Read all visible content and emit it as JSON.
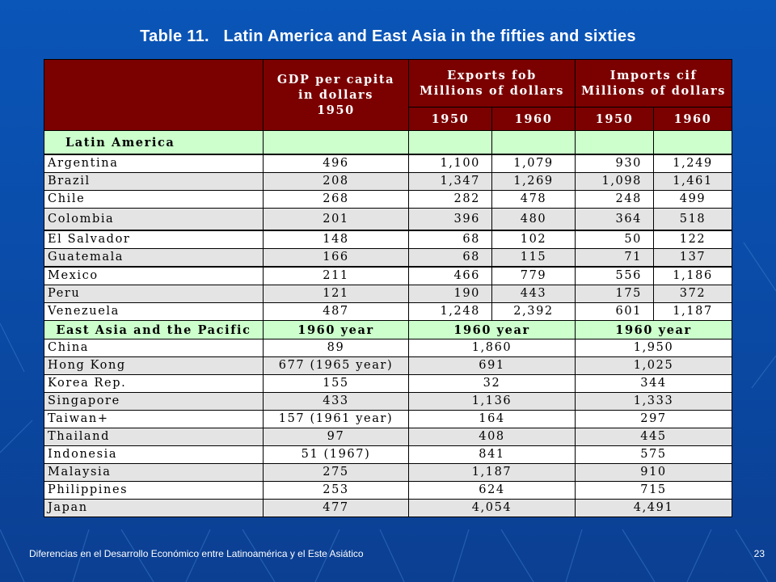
{
  "title": {
    "prefix": "Table 11.",
    "text": "Latin America and East Asia in the fifties and sixties"
  },
  "header": {
    "gdp": [
      "GDP per capita",
      "in dollars",
      "1950"
    ],
    "exports": [
      "Exports fob",
      "Millions of dollars"
    ],
    "imports": [
      "Imports cif",
      "Millions of dollars"
    ],
    "years": [
      "1950",
      "1960",
      "1950",
      "1960"
    ]
  },
  "latin": {
    "label": "Latin America",
    "rows": [
      {
        "country": "Argentina",
        "gdp": "496",
        "e50": "1,100",
        "e60": "1,079",
        "i50": "930",
        "i60": "1,249"
      },
      {
        "country": "Brazil",
        "gdp": "208",
        "e50": "1,347",
        "e60": "1,269",
        "i50": "1,098",
        "i60": "1,461"
      },
      {
        "country": "Chile",
        "gdp": "268",
        "e50": "282",
        "e60": "478",
        "i50": "248",
        "i60": "499"
      },
      {
        "country": "Colombia",
        "gdp": "201",
        "e50": "396",
        "e60": "480",
        "i50": "364",
        "i60": "518"
      },
      {
        "country": "El Salvador",
        "gdp": "148",
        "e50": "68",
        "e60": "102",
        "i50": "50",
        "i60": "122"
      },
      {
        "country": "Guatemala",
        "gdp": "166",
        "e50": "68",
        "e60": "115",
        "i50": "71",
        "i60": "137"
      },
      {
        "country": "Mexico",
        "gdp": "211",
        "e50": "466",
        "e60": "779",
        "i50": "556",
        "i60": "1,186"
      },
      {
        "country": "Peru",
        "gdp": "121",
        "e50": "190",
        "e60": "443",
        "i50": "175",
        "i60": "372"
      },
      {
        "country": "Venezuela",
        "gdp": "487",
        "e50": "1,248",
        "e60": "2,392",
        "i50": "601",
        "i60": "1,187"
      }
    ]
  },
  "asia": {
    "label": "East Asia and the Pacific",
    "col_gdp": "1960 year",
    "col_exp": "1960 year",
    "col_imp": "1960 year",
    "rows": [
      {
        "country": "China",
        "gdp": "89",
        "exp": "1,860",
        "imp": "1,950"
      },
      {
        "country": "Hong Kong",
        "gdp": "677 (1965 year)",
        "exp": "691",
        "imp": "1,025"
      },
      {
        "country": "Korea Rep.",
        "gdp": "155",
        "exp": "32",
        "imp": "344"
      },
      {
        "country": "Singapore",
        "gdp": "433",
        "exp": "1,136",
        "imp": "1,333"
      },
      {
        "country": "Taiwan+",
        "gdp": "157 (1961 year)",
        "exp": "164",
        "imp": "297"
      },
      {
        "country": "Thailand",
        "gdp": "97",
        "exp": "408",
        "imp": "445"
      },
      {
        "country": "Indonesia",
        "gdp": "51 (1967)",
        "exp": "841",
        "imp": "575"
      },
      {
        "country": "Malaysia",
        "gdp": "275",
        "exp": "1,187",
        "imp": "910"
      },
      {
        "country": "Philippines",
        "gdp": "253",
        "exp": "624",
        "imp": "715"
      },
      {
        "country": "Japan",
        "gdp": "477",
        "exp": "4,054",
        "imp": "4,491"
      }
    ]
  },
  "footer": {
    "text": "Diferencias en el Desarrollo Económico entre Latinoamérica y el Este Asiático",
    "page": "23"
  },
  "colors": {
    "header_bg": "#7b0000",
    "section_bg": "#ccffcc",
    "slide_bg": "#0a4aa5"
  }
}
